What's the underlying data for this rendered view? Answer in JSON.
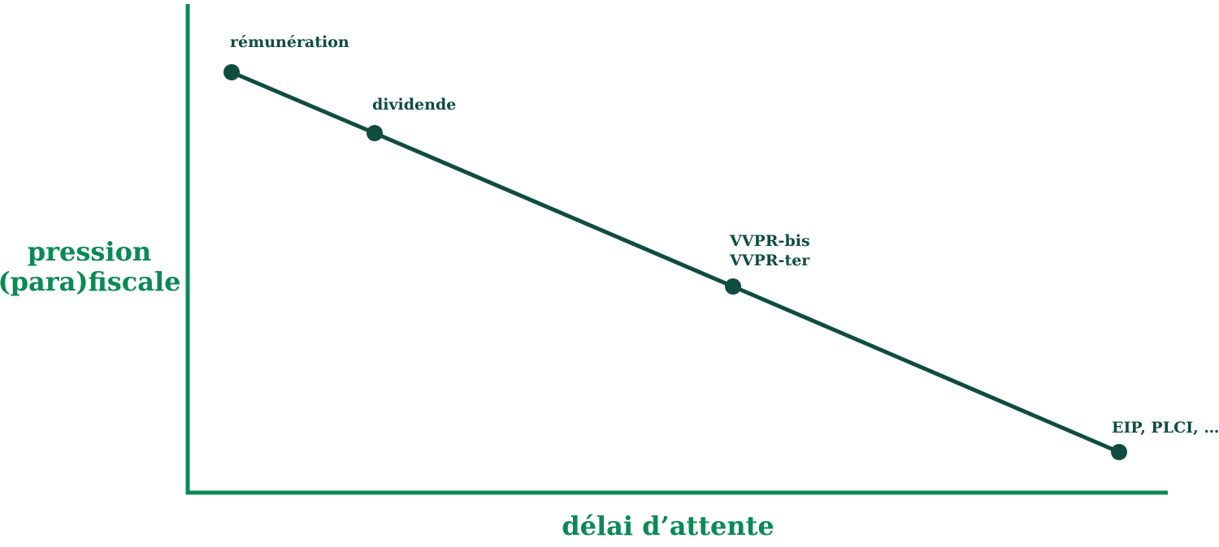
{
  "axes": {
    "y_label_lines": [
      "pression",
      "(para)fiscale"
    ],
    "x_label": "délai d’attente"
  },
  "points": [
    {
      "label_lines": [
        "rémunération"
      ]
    },
    {
      "label_lines": [
        "dividende"
      ]
    },
    {
      "label_lines": [
        "VVPR-bis",
        "VVPR-ter"
      ]
    },
    {
      "label_lines": [
        "EIP, PLCI, …"
      ]
    }
  ],
  "colors": {
    "axis": "#0a8a55",
    "line": "#0e4d40",
    "labels": "#0e4d40"
  }
}
